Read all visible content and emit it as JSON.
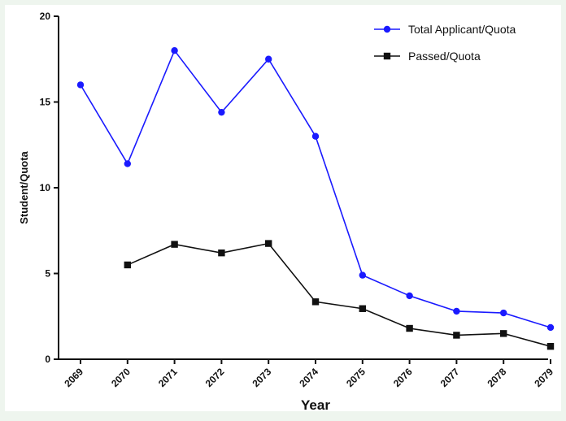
{
  "chart_data": {
    "type": "line",
    "x": [
      "2069",
      "2070",
      "2071",
      "2072",
      "2073",
      "2074",
      "2075",
      "2076",
      "2077",
      "2078",
      "2079"
    ],
    "series": [
      {
        "name": "Total Applicant/Quota",
        "color": "#1a1aff",
        "marker": "circle",
        "values": [
          16.0,
          11.4,
          18.0,
          14.4,
          17.5,
          13.0,
          4.9,
          3.7,
          2.8,
          2.7,
          1.85
        ]
      },
      {
        "name": "Passed/Quota",
        "color": "#111111",
        "marker": "square",
        "values": [
          null,
          5.5,
          6.7,
          6.2,
          6.75,
          3.35,
          2.95,
          1.8,
          1.4,
          1.5,
          0.75
        ]
      }
    ],
    "xlabel": "Year",
    "ylabel": "Student/Quota",
    "ylim": [
      0,
      20
    ],
    "yticks": [
      0,
      5,
      10,
      15,
      20
    ],
    "grid": false,
    "legend_position": "top-right"
  }
}
